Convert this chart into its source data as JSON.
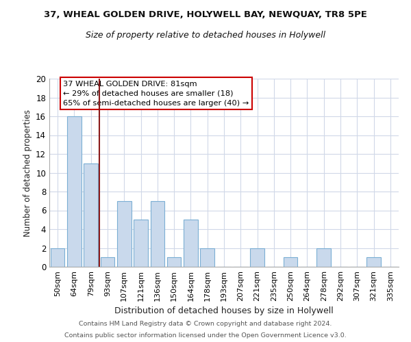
{
  "title1": "37, WHEAL GOLDEN DRIVE, HOLYWELL BAY, NEWQUAY, TR8 5PE",
  "title2": "Size of property relative to detached houses in Holywell",
  "xlabel": "Distribution of detached houses by size in Holywell",
  "ylabel": "Number of detached properties",
  "bin_labels": [
    "50sqm",
    "64sqm",
    "79sqm",
    "93sqm",
    "107sqm",
    "121sqm",
    "136sqm",
    "150sqm",
    "164sqm",
    "178sqm",
    "193sqm",
    "207sqm",
    "221sqm",
    "235sqm",
    "250sqm",
    "264sqm",
    "278sqm",
    "292sqm",
    "307sqm",
    "321sqm",
    "335sqm"
  ],
  "bar_heights": [
    2,
    16,
    11,
    1,
    7,
    5,
    7,
    1,
    5,
    2,
    0,
    0,
    2,
    0,
    1,
    0,
    2,
    0,
    0,
    1,
    0
  ],
  "bar_color": "#c9d9ec",
  "bar_edge_color": "#7bafd4",
  "vline_x_index": 2,
  "vline_color": "#8b1a1a",
  "ylim": [
    0,
    20
  ],
  "yticks": [
    0,
    2,
    4,
    6,
    8,
    10,
    12,
    14,
    16,
    18,
    20
  ],
  "annotation_line1": "37 WHEAL GOLDEN DRIVE: 81sqm",
  "annotation_line2": "← 29% of detached houses are smaller (18)",
  "annotation_line3": "65% of semi-detached houses are larger (40) →",
  "annotation_box_color": "#ffffff",
  "annotation_box_edge": "#cc0000",
  "footer1": "Contains HM Land Registry data © Crown copyright and database right 2024.",
  "footer2": "Contains public sector information licensed under the Open Government Licence v3.0.",
  "background_color": "#ffffff",
  "grid_color": "#d0d8e8"
}
